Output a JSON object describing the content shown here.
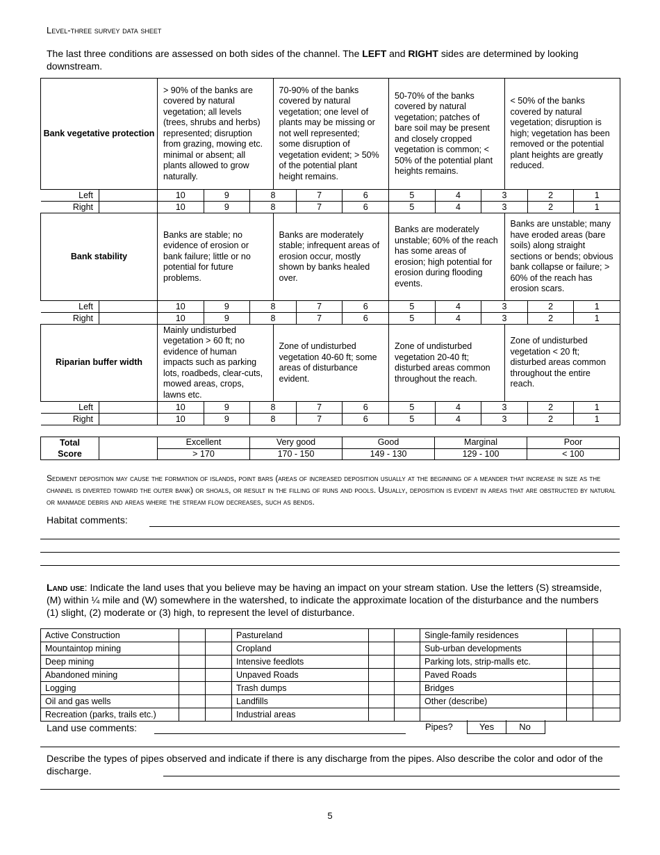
{
  "header": {
    "title": "Level-three survey data sheet"
  },
  "intro": {
    "text_before": "The last three conditions are assessed on both sides of the channel.  The ",
    "left": "LEFT",
    "mid": " and ",
    "right": "RIGHT",
    "text_after": " sides are determined by looking downstream."
  },
  "conditions": [
    {
      "label": "Bank vegetative protection",
      "descriptions": [
        "> 90% of the banks are covered by natural vegetation; all levels (trees, shrubs and herbs) represented; disruption from grazing, mowing etc. minimal or absent; all plants allowed to grow naturally.",
        "70-90% of the banks covered by natural vegetation; one level of plants may be missing or not well represented; some disruption of vegetation evident; > 50% of the potential plant height remains.",
        "50-70% of the banks covered by natural vegetation; patches of bare soil may be present and closely cropped vegetation is common; < 50% of the potential plant heights remains.",
        "< 50% of the banks covered by natural vegetation; disruption is high; vegetation has been removed or the potential plant heights are greatly reduced."
      ]
    },
    {
      "label": "Bank stability",
      "descriptions": [
        "Banks are stable; no evidence of erosion or bank failure; little or no potential for future problems.",
        "Banks are moderately stable; infrequent areas of erosion occur, mostly shown by banks healed over.",
        "Banks are moderately unstable; 60% of the reach has some areas of erosion; high potential for erosion during flooding events.",
        "Banks are unstable; many have eroded areas (bare soils) along straight sections or bends; obvious bank collapse or failure; > 60% of the reach has erosion scars."
      ]
    },
    {
      "label": "Riparian buffer width",
      "descriptions": [
        "Mainly undisturbed vegetation > 60 ft; no evidence of human impacts such as parking lots, roadbeds, clear-cuts, mowed areas, crops, lawns etc.",
        "Zone of undisturbed vegetation 40-60 ft; some areas of disturbance evident.",
        "Zone of undisturbed vegetation 20-40 ft; disturbed areas common throughout the reach.",
        "Zone of undisturbed vegetation < 20 ft; disturbed areas common throughout the entire reach."
      ]
    }
  ],
  "sides": [
    "Left",
    "Right"
  ],
  "scores": [
    "10",
    "9",
    "8",
    "7",
    "6",
    "5",
    "4",
    "3",
    "2",
    "1"
  ],
  "total": {
    "label1": "Total",
    "label2": "Score",
    "categories": [
      "Excellent",
      "Very good",
      "Good",
      "Marginal",
      "Poor"
    ],
    "ranges": [
      "> 170",
      "170 - 150",
      "149 - 130",
      "129 - 100",
      "< 100"
    ]
  },
  "sediment": {
    "text": "Sediment deposition may cause the formation of islands, point bars (areas of increased deposition usually at the beginning of a meander that increase in size as the channel is diverted toward the outer bank) or shoals, or result in the filling of runs and pools. Usually, deposition is evident in areas that are obstructed by natural or manmade debris and areas where the stream flow decreases, such as bends."
  },
  "habitat": {
    "label": "Habitat comments:"
  },
  "land_use": {
    "title": "Land use",
    "text": ": Indicate the land uses that you believe may be having an impact on your stream station.  Use the letters (S) streamside, (M) within ¼ mile and (W) somewhere in the watershed, to indicate the approximate location of the disturbance and the numbers (1) slight, (2) moderate or (3) high, to represent the level of disturbance.",
    "rows": [
      [
        "Active Construction",
        "Pastureland",
        "Single-family residences"
      ],
      [
        "Mountaintop mining",
        "Cropland",
        "Sub-urban developments"
      ],
      [
        "Deep mining",
        "Intensive feedlots",
        "Parking lots, strip-malls etc."
      ],
      [
        "Abandoned mining",
        "Unpaved Roads",
        "Paved Roads"
      ],
      [
        "Logging",
        "Trash dumps",
        "Bridges"
      ],
      [
        "Oil and gas wells",
        "Landfills",
        "Other (describe)"
      ],
      [
        "Recreation (parks, trails etc.)",
        "Industrial areas",
        ""
      ]
    ],
    "comments_label": "Land use comments:",
    "pipes_label": "Pipes?",
    "yes": "Yes",
    "no": "No"
  },
  "pipes": {
    "text": "Describe the types of pipes observed and indicate if there is any discharge from the pipes.  Also describe the color and odor of the discharge."
  },
  "page_number": "5"
}
